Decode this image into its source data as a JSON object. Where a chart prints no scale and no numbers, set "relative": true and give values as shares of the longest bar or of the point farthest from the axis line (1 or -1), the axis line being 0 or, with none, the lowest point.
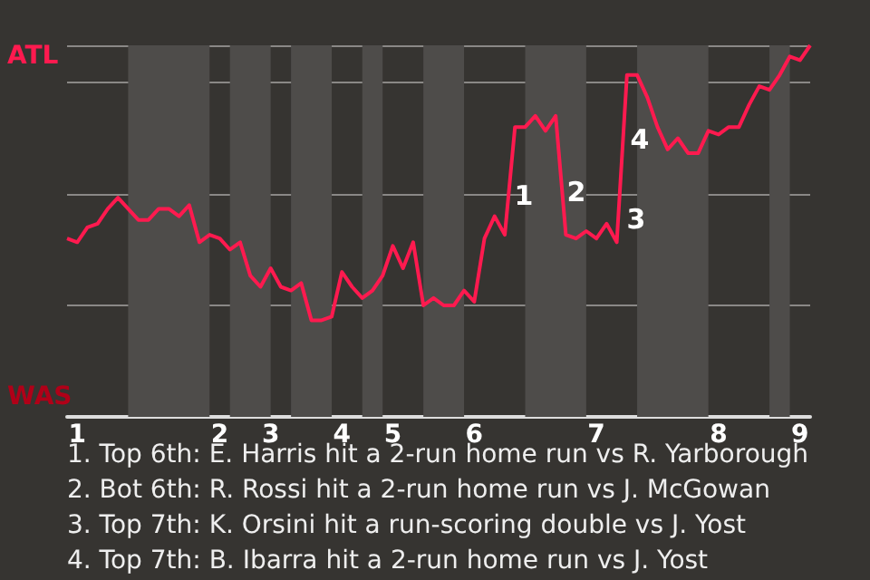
{
  "chart_data": {
    "type": "line",
    "relative": true,
    "categories": [
      null,
      "1",
      null,
      null,
      null,
      null,
      null,
      null,
      null,
      null,
      null,
      null,
      null,
      null,
      null,
      "2",
      null,
      null,
      null,
      null,
      "3",
      null,
      null,
      null,
      null,
      null,
      null,
      "4",
      null,
      null,
      null,
      null,
      "5",
      null,
      null,
      null,
      null,
      null,
      null,
      null,
      "6",
      null,
      null,
      null,
      null,
      null,
      null,
      null,
      null,
      null,
      null,
      null,
      "7",
      null,
      null,
      null,
      null,
      null,
      null,
      null,
      null,
      null,
      null,
      null,
      "8",
      null,
      null,
      null,
      null,
      null,
      null,
      null,
      "9",
      null
    ],
    "series": [
      {
        "color": "#ff1a4f",
        "values": [
          0.48,
          0.47,
          0.51,
          0.52,
          0.56,
          0.59,
          0.56,
          0.53,
          0.53,
          0.56,
          0.56,
          0.54,
          0.57,
          0.47,
          0.49,
          0.48,
          0.45,
          0.47,
          0.38,
          0.35,
          0.4,
          0.35,
          0.34,
          0.36,
          0.26,
          0.26,
          0.27,
          0.39,
          0.35,
          0.32,
          0.34,
          0.38,
          0.46,
          0.4,
          0.47,
          0.3,
          0.32,
          0.3,
          0.3,
          0.34,
          0.31,
          0.48,
          0.54,
          0.49,
          0.78,
          0.78,
          0.81,
          0.77,
          0.81,
          0.49,
          0.48,
          0.5,
          0.48,
          0.52,
          0.47,
          0.92,
          0.92,
          0.86,
          0.78,
          0.72,
          0.75,
          0.71,
          0.71,
          0.77,
          0.76,
          0.78,
          0.78,
          0.84,
          0.89,
          0.88,
          0.92,
          0.97,
          0.96,
          1
        ]
      }
    ],
    "grid": "y",
    "annotations": [
      "ATL",
      "WAS",
      "1",
      "2",
      "3",
      "4",
      "1. Top 6th: E. Harris hit a 2-run home run vs R. Yarborough",
      "2. Bot 6th: R. Rossi hit a 2-run home run vs J. McGowan",
      "3. Top 7th: K. Orsini hit a run-scoring double vs J. Yost",
      "4. Top 7th: B. Ibarra hit a 2-run home run vs J. Yost"
    ]
  }
}
